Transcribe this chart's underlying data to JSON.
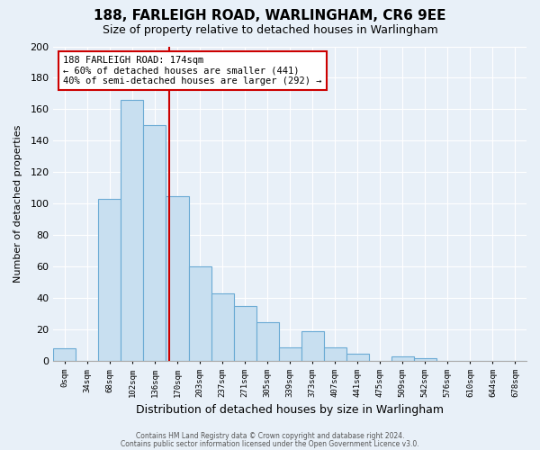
{
  "title": "188, FARLEIGH ROAD, WARLINGHAM, CR6 9EE",
  "subtitle": "Size of property relative to detached houses in Warlingham",
  "xlabel": "Distribution of detached houses by size in Warlingham",
  "ylabel": "Number of detached properties",
  "bin_labels": [
    "0sqm",
    "34sqm",
    "68sqm",
    "102sqm",
    "136sqm",
    "170sqm",
    "203sqm",
    "237sqm",
    "271sqm",
    "305sqm",
    "339sqm",
    "373sqm",
    "407sqm",
    "441sqm",
    "475sqm",
    "509sqm",
    "542sqm",
    "576sqm",
    "610sqm",
    "644sqm",
    "678sqm"
  ],
  "bar_heights": [
    8,
    0,
    103,
    166,
    150,
    105,
    60,
    43,
    35,
    25,
    9,
    19,
    9,
    5,
    0,
    3,
    2,
    0,
    0,
    0,
    0
  ],
  "bar_color": "#c8dff0",
  "bar_edge_color": "#6aaad4",
  "ylim": [
    0,
    200
  ],
  "yticks": [
    0,
    20,
    40,
    60,
    80,
    100,
    120,
    140,
    160,
    180,
    200
  ],
  "vline_color": "#cc0000",
  "annotation_line1": "188 FARLEIGH ROAD: 174sqm",
  "annotation_line2": "← 60% of detached houses are smaller (441)",
  "annotation_line3": "40% of semi-detached houses are larger (292) →",
  "annotation_box_color": "#ffffff",
  "annotation_box_edge": "#cc0000",
  "footer1": "Contains HM Land Registry data © Crown copyright and database right 2024.",
  "footer2": "Contains public sector information licensed under the Open Government Licence v3.0.",
  "background_color": "#e8f0f8",
  "grid_color": "#ffffff",
  "title_fontsize": 11,
  "subtitle_fontsize": 9,
  "ylabel_fontsize": 8,
  "xlabel_fontsize": 9
}
